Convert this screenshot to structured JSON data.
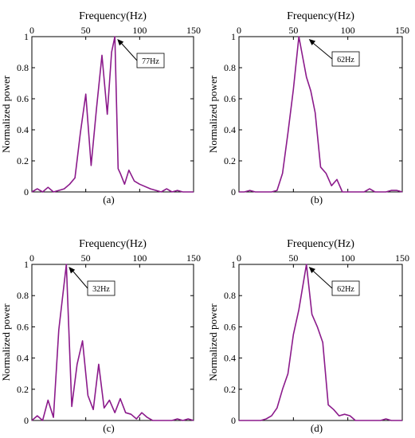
{
  "chart_data": [
    {
      "type": "line",
      "caption": "(a)",
      "xlabel": "Frequency(Hz)",
      "ylabel": "Normalized power",
      "xlim": [
        0,
        150
      ],
      "ylim": [
        0,
        1
      ],
      "xticks": [
        "0",
        "50",
        "100",
        "150"
      ],
      "yticks": [
        "0",
        "0.2",
        "0.4",
        "0.6",
        "0.8",
        "1"
      ],
      "color": "#8b1a8b",
      "annotation": {
        "label": "77Hz",
        "x": 77,
        "y": 1.0
      },
      "x": [
        0,
        5,
        10,
        15,
        20,
        25,
        30,
        35,
        40,
        45,
        50,
        55,
        60,
        65,
        70,
        72,
        74,
        77,
        80,
        82,
        86,
        90,
        95,
        100,
        110,
        120,
        125,
        130,
        135,
        140,
        145,
        150
      ],
      "y": [
        0,
        0.02,
        0,
        0.03,
        0,
        0.01,
        0.02,
        0.05,
        0.09,
        0.38,
        0.63,
        0.17,
        0.54,
        0.88,
        0.5,
        0.7,
        0.9,
        1.0,
        0.15,
        0.12,
        0.05,
        0.14,
        0.07,
        0.05,
        0.02,
        0,
        0.02,
        0,
        0.01,
        0,
        0,
        0
      ]
    },
    {
      "type": "line",
      "caption": "(b)",
      "xlabel": "Frequency(Hz)",
      "ylabel": "Normalized power",
      "xlim": [
        0,
        150
      ],
      "ylim": [
        0,
        1
      ],
      "xticks": [
        "0",
        "50",
        "100",
        "150"
      ],
      "yticks": [
        "0",
        "0.2",
        "0.4",
        "0.6",
        "0.8",
        "1"
      ],
      "color": "#8b1a8b",
      "annotation": {
        "label": "62Hz",
        "x": 62,
        "y": 1.0
      },
      "x": [
        0,
        5,
        10,
        15,
        20,
        25,
        30,
        35,
        40,
        45,
        50,
        55,
        62,
        66,
        70,
        75,
        80,
        85,
        90,
        95,
        100,
        105,
        110,
        115,
        120,
        125,
        130,
        135,
        140,
        145,
        150
      ],
      "y": [
        0,
        0,
        0.01,
        0,
        0,
        0,
        0,
        0.01,
        0.12,
        0.38,
        0.66,
        1.0,
        0.74,
        0.65,
        0.51,
        0.16,
        0.12,
        0.04,
        0.08,
        0,
        0,
        0,
        0,
        0,
        0.02,
        0,
        0,
        0,
        0.01,
        0.01,
        0
      ]
    },
    {
      "type": "line",
      "caption": "(c)",
      "xlabel": "Frequency(Hz)",
      "ylabel": "Normalized power",
      "xlim": [
        0,
        150
      ],
      "ylim": [
        0,
        1
      ],
      "xticks": [
        "0",
        "50",
        "100",
        "150"
      ],
      "yticks": [
        "0",
        "0.2",
        "0.4",
        "0.6",
        "0.8",
        "1"
      ],
      "color": "#8b1a8b",
      "annotation": {
        "label": "32Hz",
        "x": 32,
        "y": 1.0
      },
      "x": [
        0,
        5,
        10,
        15,
        20,
        25,
        32,
        37,
        42,
        47,
        52,
        57,
        62,
        67,
        72,
        77,
        82,
        87,
        92,
        97,
        102,
        107,
        112,
        120,
        130,
        135,
        140,
        145,
        150
      ],
      "y": [
        0,
        0.03,
        0,
        0.13,
        0.02,
        0.58,
        1.0,
        0.09,
        0.36,
        0.51,
        0.16,
        0.07,
        0.36,
        0.08,
        0.13,
        0.05,
        0.14,
        0.05,
        0.04,
        0.01,
        0.05,
        0.02,
        0,
        0,
        0,
        0.01,
        0,
        0.01,
        0
      ]
    },
    {
      "type": "line",
      "caption": "(d)",
      "xlabel": "Frequency(Hz)",
      "ylabel": "Normalized power",
      "xlim": [
        0,
        150
      ],
      "ylim": [
        0,
        1
      ],
      "xticks": [
        "0",
        "50",
        "100",
        "150"
      ],
      "yticks": [
        "0",
        "0.2",
        "0.4",
        "0.6",
        "0.8",
        "1"
      ],
      "color": "#8b1a8b",
      "annotation": {
        "label": "62Hz",
        "x": 62,
        "y": 1.0
      },
      "x": [
        0,
        5,
        10,
        15,
        20,
        25,
        30,
        35,
        40,
        45,
        50,
        55,
        62,
        67,
        72,
        77,
        82,
        87,
        92,
        97,
        102,
        107,
        112,
        120,
        130,
        135,
        140,
        145,
        150
      ],
      "y": [
        0,
        0,
        0,
        0,
        0,
        0.01,
        0.03,
        0.08,
        0.2,
        0.3,
        0.55,
        0.71,
        1.0,
        0.68,
        0.6,
        0.5,
        0.1,
        0.07,
        0.03,
        0.04,
        0.03,
        0,
        0,
        0,
        0,
        0.01,
        0,
        0,
        0
      ]
    }
  ]
}
